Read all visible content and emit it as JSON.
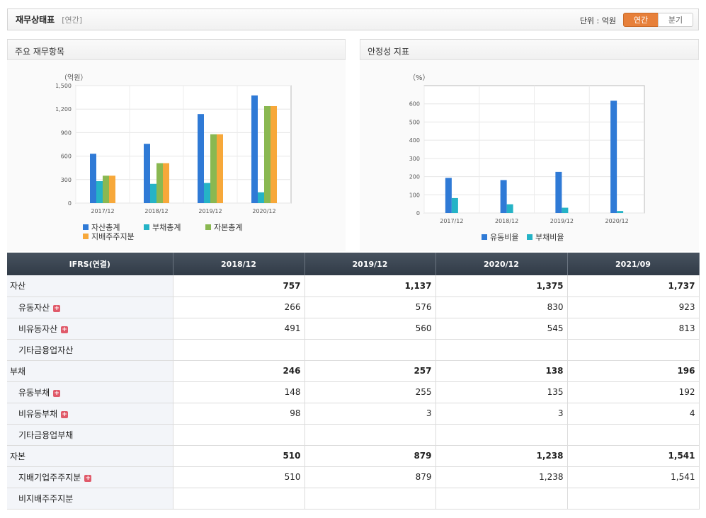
{
  "header": {
    "title": "재무상태표",
    "sub": "[연간]",
    "unit": "단위 : 억원",
    "tab_annual": "연간",
    "tab_quarter": "분기"
  },
  "panels": {
    "left_title": "주요 재무항목",
    "right_title": "안정성 지표"
  },
  "chart_data": [
    {
      "type": "bar",
      "unit_label": "（억원）",
      "categories": [
        "2017/12",
        "2018/12",
        "2019/12",
        "2020/12"
      ],
      "ylim": [
        0,
        1500
      ],
      "yticks": [
        "0",
        "300",
        "600",
        "900",
        "1,200",
        "1,500"
      ],
      "legend_position": "bottom",
      "series": [
        {
          "name": "자산총계",
          "color": "#2f7ad6",
          "values": [
            630,
            757,
            1137,
            1375
          ]
        },
        {
          "name": "부채총계",
          "color": "#25b3c6",
          "values": [
            280,
            246,
            257,
            138
          ]
        },
        {
          "name": "자본총계",
          "color": "#8ab851",
          "values": [
            350,
            510,
            879,
            1238
          ]
        },
        {
          "name": "지배주주지분",
          "color": "#f7a83a",
          "values": [
            350,
            510,
            879,
            1238
          ]
        }
      ]
    },
    {
      "type": "bar",
      "unit_label": "（%）",
      "categories": [
        "2017/12",
        "2018/12",
        "2019/12",
        "2020/12"
      ],
      "ylim": [
        0,
        700
      ],
      "yticks": [
        "0",
        "100",
        "200",
        "300",
        "400",
        "500",
        "600"
      ],
      "legend_position": "bottom",
      "series": [
        {
          "name": "유동비율",
          "color": "#2f7ad6",
          "values": [
            193,
            181,
            226,
            617
          ]
        },
        {
          "name": "부채비율",
          "color": "#25b3c6",
          "values": [
            82,
            48,
            29,
            11
          ]
        }
      ]
    }
  ],
  "table": {
    "corner": "IFRS(연결)",
    "periods": [
      "2018/12",
      "2019/12",
      "2020/12",
      "2021/09"
    ],
    "rows": [
      {
        "label": "자산",
        "level": "major",
        "expand": false,
        "values": [
          "757",
          "1,137",
          "1,375",
          "1,737"
        ]
      },
      {
        "label": "유동자산",
        "level": "sub",
        "expand": true,
        "values": [
          "266",
          "576",
          "830",
          "923"
        ]
      },
      {
        "label": "비유동자산",
        "level": "sub",
        "expand": true,
        "values": [
          "491",
          "560",
          "545",
          "813"
        ]
      },
      {
        "label": "기타금융업자산",
        "level": "sub",
        "expand": false,
        "values": [
          "",
          "",
          "",
          ""
        ]
      },
      {
        "label": "부채",
        "level": "major",
        "expand": false,
        "values": [
          "246",
          "257",
          "138",
          "196"
        ]
      },
      {
        "label": "유동부채",
        "level": "sub",
        "expand": true,
        "values": [
          "148",
          "255",
          "135",
          "192"
        ]
      },
      {
        "label": "비유동부채",
        "level": "sub",
        "expand": true,
        "values": [
          "98",
          "3",
          "3",
          "4"
        ]
      },
      {
        "label": "기타금융업부채",
        "level": "sub",
        "expand": false,
        "values": [
          "",
          "",
          "",
          ""
        ]
      },
      {
        "label": "자본",
        "level": "major",
        "expand": false,
        "values": [
          "510",
          "879",
          "1,238",
          "1,541"
        ]
      },
      {
        "label": "지배기업주주지분",
        "level": "sub",
        "expand": true,
        "values": [
          "510",
          "879",
          "1,238",
          "1,541"
        ]
      },
      {
        "label": "비지배주주지분",
        "level": "sub",
        "expand": false,
        "values": [
          "",
          "",
          "",
          ""
        ]
      }
    ]
  }
}
